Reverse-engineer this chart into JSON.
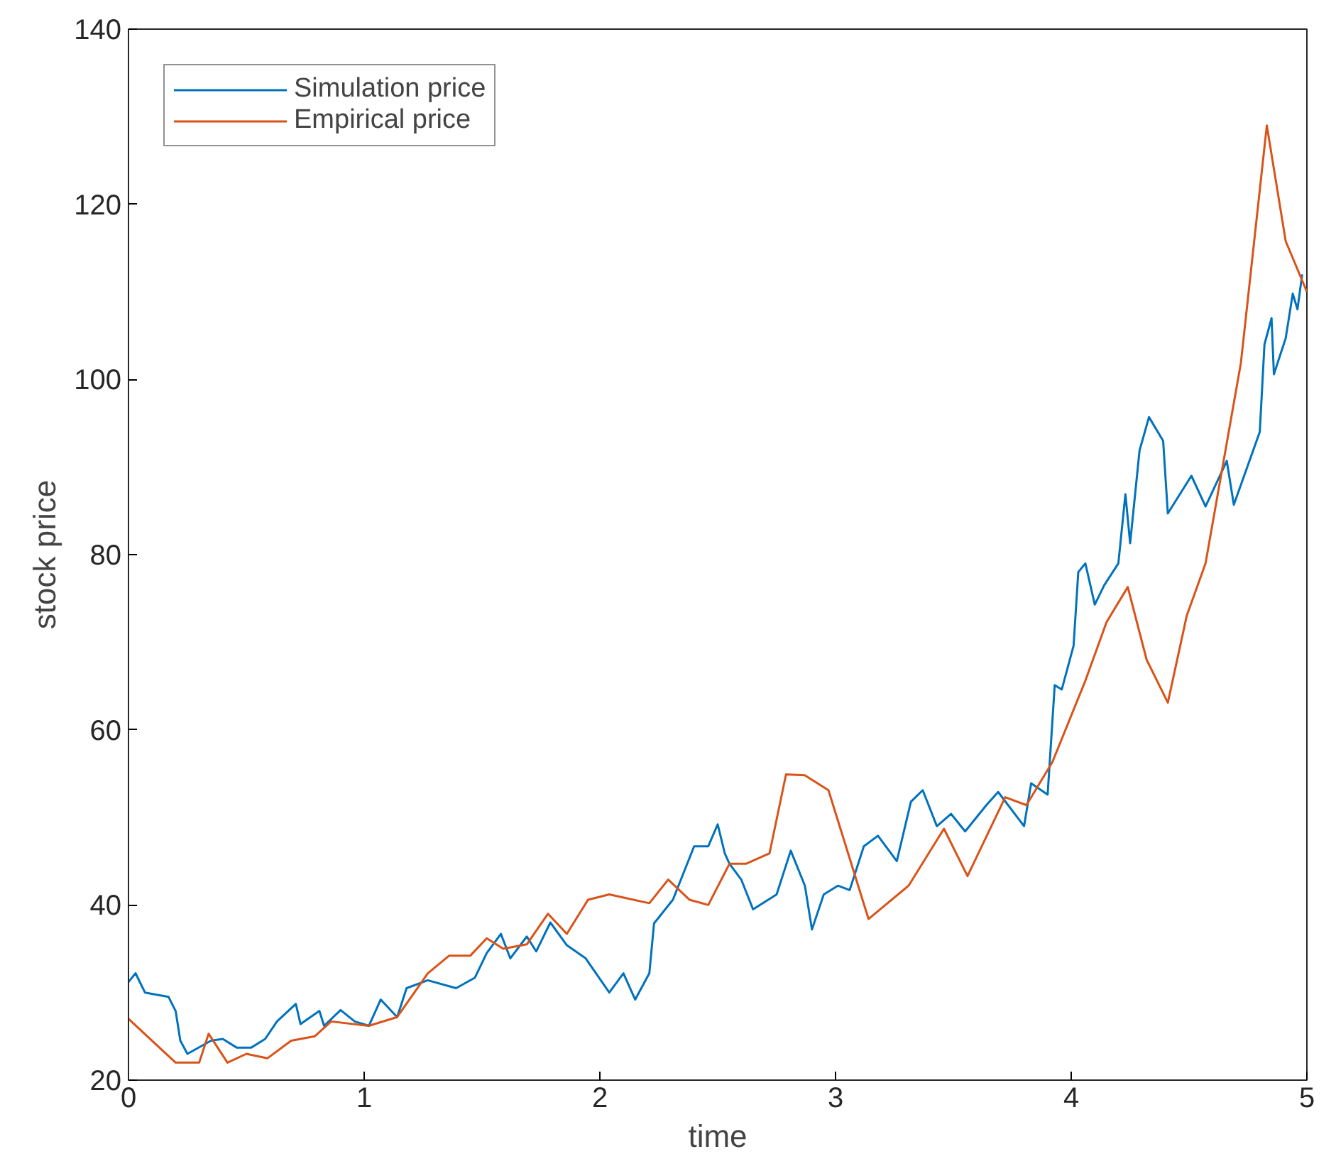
{
  "chart_data": {
    "type": "line",
    "xlabel": "time",
    "ylabel": "stock price",
    "xlim": [
      0,
      5
    ],
    "ylim": [
      20,
      140
    ],
    "xticks": [
      0,
      1,
      2,
      3,
      4,
      5
    ],
    "yticks": [
      20,
      40,
      60,
      80,
      100,
      120,
      140
    ],
    "grid": false,
    "legend": "top left",
    "line_style": "solid",
    "marker": "none",
    "series": [
      {
        "name": "Simulation price",
        "color": "#0072bd",
        "x": [
          0,
          0.03,
          0.07,
          0.17,
          0.2,
          0.22,
          0.25,
          0.35,
          0.4,
          0.46,
          0.52,
          0.58,
          0.63,
          0.71,
          0.73,
          0.81,
          0.83,
          0.9,
          0.96,
          1.02,
          1.07,
          1.14,
          1.18,
          1.27,
          1.39,
          1.47,
          1.52,
          1.58,
          1.62,
          1.69,
          1.73,
          1.79,
          1.86,
          1.94,
          2.04,
          2.1,
          2.15,
          2.21,
          2.23,
          2.31,
          2.4,
          2.46,
          2.5,
          2.53,
          2.55,
          2.6,
          2.65,
          2.75,
          2.81,
          2.87,
          2.9,
          2.95,
          3.01,
          3.06,
          3.12,
          3.18,
          3.26,
          3.32,
          3.37,
          3.43,
          3.49,
          3.55,
          3.64,
          3.69,
          3.8,
          3.83,
          3.9,
          3.93,
          3.96,
          4.01,
          4.03,
          4.06,
          4.1,
          4.14,
          4.2,
          4.23,
          4.25,
          4.29,
          4.33,
          4.39,
          4.41,
          4.51,
          4.57,
          4.66,
          4.69,
          4.8,
          4.82,
          4.85,
          4.86,
          4.91,
          4.94,
          4.96,
          4.98
        ],
        "values": [
          31.2,
          32.2,
          30,
          29.5,
          27.9,
          24.5,
          23,
          24.5,
          24.7,
          23.7,
          23.7,
          24.7,
          26.7,
          28.7,
          26.4,
          27.9,
          26.2,
          28,
          26.7,
          26.2,
          29.2,
          27.2,
          30.5,
          31.4,
          30.5,
          31.7,
          34.5,
          36.7,
          33.9,
          36.4,
          34.7,
          38,
          35.4,
          33.9,
          30,
          32.2,
          29.2,
          32.2,
          37.9,
          40.6,
          46.7,
          46.7,
          49.2,
          45.9,
          44.7,
          42.9,
          39.5,
          41.2,
          46.2,
          42.2,
          37.2,
          41.2,
          42.2,
          41.7,
          46.7,
          47.9,
          45,
          51.8,
          53.1,
          49,
          50.4,
          48.4,
          51.4,
          52.9,
          49,
          53.9,
          52.6,
          65.1,
          64.6,
          69.6,
          78,
          79,
          74.3,
          76.5,
          79,
          86.9,
          81.3,
          91.9,
          95.7,
          93,
          84.7,
          89,
          85.5,
          90.7,
          85.7,
          94,
          104,
          107,
          100.6,
          104.7,
          109.8,
          108,
          112
        ]
      },
      {
        "name": "Empirical price",
        "color": "#d95319",
        "x": [
          0,
          0.2,
          0.3,
          0.34,
          0.42,
          0.5,
          0.59,
          0.69,
          0.79,
          0.86,
          1.02,
          1.14,
          1.27,
          1.36,
          1.45,
          1.52,
          1.59,
          1.69,
          1.78,
          1.86,
          1.95,
          2.04,
          2.21,
          2.29,
          2.38,
          2.46,
          2.55,
          2.62,
          2.72,
          2.79,
          2.87,
          2.97,
          3.14,
          3.31,
          3.46,
          3.56,
          3.72,
          3.81,
          3.92,
          4.06,
          4.15,
          4.24,
          4.32,
          4.41,
          4.49,
          4.57,
          4.72,
          4.83,
          4.91,
          5
        ],
        "values": [
          27,
          22,
          22,
          25.3,
          22,
          23,
          22.5,
          24.5,
          25,
          26.7,
          26.2,
          27.2,
          32.2,
          34.2,
          34.2,
          36.2,
          35,
          35.5,
          39,
          36.7,
          40.6,
          41.2,
          40.2,
          42.9,
          40.6,
          40,
          44.7,
          44.7,
          45.9,
          54.9,
          54.8,
          53.1,
          38.4,
          42.2,
          48.7,
          43.3,
          52.3,
          51.4,
          56.3,
          65.6,
          72.3,
          76.3,
          68,
          63.1,
          73,
          79,
          101.9,
          129,
          115.8,
          110
        ]
      }
    ]
  }
}
